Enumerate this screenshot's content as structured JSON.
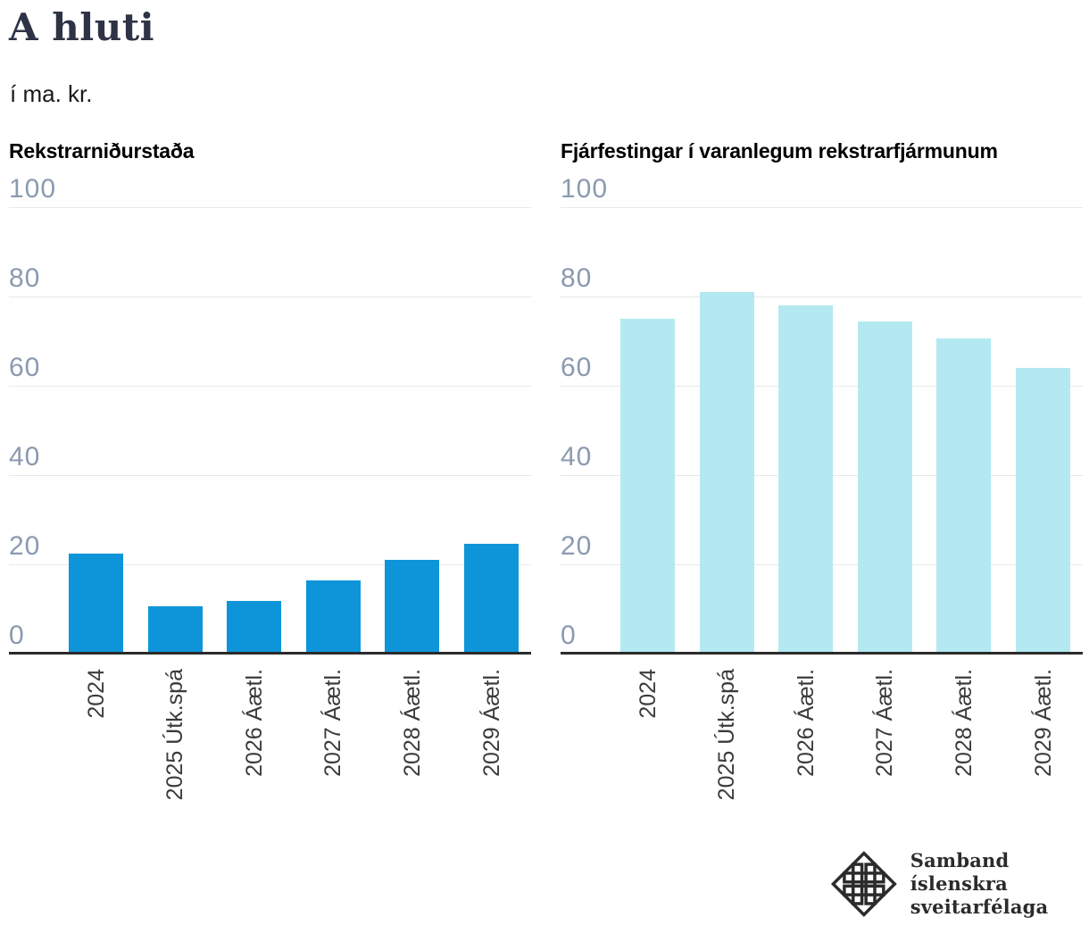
{
  "header": {
    "title": "A hluti",
    "subtitle": "í ma. kr."
  },
  "chart_data": [
    {
      "type": "bar",
      "title": "Rekstrarniðurstaða",
      "categories": [
        "2024",
        "2025 Útk.spá",
        "2026 Áætl.",
        "2027 Áætl.",
        "2028 Áætl.",
        "2029 Áætl."
      ],
      "values": [
        22.5,
        10.7,
        11.8,
        16.4,
        21.0,
        24.6
      ],
      "unit": "ma. kr.",
      "ylim": [
        0,
        100
      ],
      "yticks": [
        100,
        80,
        60,
        40,
        20,
        0
      ],
      "bar_color": "#0e95d9",
      "grid": true
    },
    {
      "type": "bar",
      "title": "Fjárfestingar í varanlegum rekstrarfjármunum",
      "categories": [
        "2024",
        "2025 Útk.spá",
        "2026 Áætl.",
        "2027 Áætl.",
        "2028 Áætl.",
        "2029 Áætl."
      ],
      "values": [
        75.0,
        81.0,
        78.0,
        74.5,
        70.6,
        64.0
      ],
      "unit": "ma. kr.",
      "ylim": [
        0,
        100
      ],
      "yticks": [
        100,
        80,
        60,
        40,
        20,
        0
      ],
      "bar_color": "#b4e9f2",
      "grid": true
    }
  ],
  "footer": {
    "org_line1": "Samband íslenskra",
    "org_line2": "sveitarfélaga"
  },
  "colors": {
    "primary_bar": "#0e95d9",
    "secondary_bar": "#b4e9f2",
    "axis": "#2b2b2b",
    "gridline": "#e8e8e8",
    "ytick_text": "#8b9aaf",
    "title_text": "#2e3346"
  }
}
